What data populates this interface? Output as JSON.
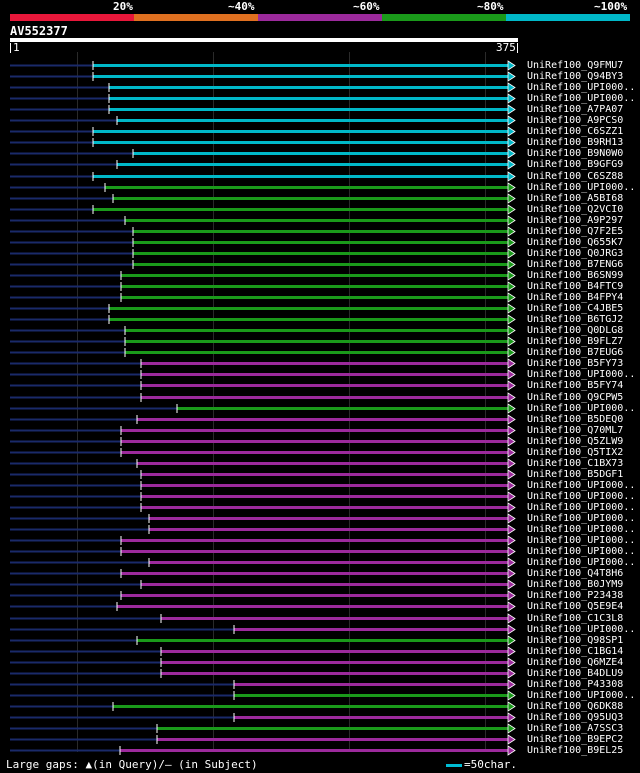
{
  "legend": {
    "labels": [
      "20%",
      "~40%",
      "~60%",
      "~80%",
      "~100%"
    ],
    "colors": [
      "#e8173a",
      "#e07020",
      "#9c2a9c",
      "#1a9a1a",
      "#00b8c8"
    ]
  },
  "query": {
    "name": "AV552377",
    "start": "1",
    "end": "375"
  },
  "hits": [
    {
      "label": "UniRef100_Q9FMU7",
      "color": "#00b8c8"
    },
    {
      "label": "UniRef100_Q94BY3",
      "color": "#00b8c8"
    },
    {
      "label": "UniRef100_UPI000..",
      "color": "#00b8c8"
    },
    {
      "label": "UniRef100_UPI000..",
      "color": "#00b8c8"
    },
    {
      "label": "UniRef100_A7PA07",
      "color": "#00b8c8"
    },
    {
      "label": "UniRef100_A9PCS0",
      "color": "#00b8c8"
    },
    {
      "label": "UniRef100_C6SZZ1",
      "color": "#00b8c8"
    },
    {
      "label": "UniRef100_B9RH13",
      "color": "#00b8c8"
    },
    {
      "label": "UniRef100_B9N0W0",
      "color": "#00b8c8"
    },
    {
      "label": "UniRef100_B9GFG9",
      "color": "#00b8c8"
    },
    {
      "label": "UniRef100_C6SZ88",
      "color": "#00b8c8"
    },
    {
      "label": "UniRef100_UPI000..",
      "color": "#1a9a1a"
    },
    {
      "label": "UniRef100_A5BI68",
      "color": "#1a9a1a"
    },
    {
      "label": "UniRef100_Q2VCI0",
      "color": "#1a9a1a"
    },
    {
      "label": "UniRef100_A9P297",
      "color": "#1a9a1a"
    },
    {
      "label": "UniRef100_Q7F2E5",
      "color": "#1a9a1a"
    },
    {
      "label": "UniRef100_Q655K7",
      "color": "#1a9a1a"
    },
    {
      "label": "UniRef100_Q0JRG3",
      "color": "#1a9a1a"
    },
    {
      "label": "UniRef100_B7ENG6",
      "color": "#1a9a1a"
    },
    {
      "label": "UniRef100_B6SN99",
      "color": "#1a9a1a"
    },
    {
      "label": "UniRef100_B4FTC9",
      "color": "#1a9a1a"
    },
    {
      "label": "UniRef100_B4FPY4",
      "color": "#1a9a1a"
    },
    {
      "label": "UniRef100_C4JBE5",
      "color": "#1a9a1a"
    },
    {
      "label": "UniRef100_B6TGJ2",
      "color": "#1a9a1a"
    },
    {
      "label": "UniRef100_Q0DLG8",
      "color": "#1a9a1a"
    },
    {
      "label": "UniRef100_B9FLZ7",
      "color": "#1a9a1a"
    },
    {
      "label": "UniRef100_B7EUG6",
      "color": "#1a9a1a"
    },
    {
      "label": "UniRef100_B5FY73",
      "color": "#9c2a9c"
    },
    {
      "label": "UniRef100_UPI000..",
      "color": "#9c2a9c"
    },
    {
      "label": "UniRef100_B5FY74",
      "color": "#9c2a9c"
    },
    {
      "label": "UniRef100_Q9CPW5",
      "color": "#9c2a9c"
    },
    {
      "label": "UniRef100_UPI000..",
      "color": "#1a9a1a"
    },
    {
      "label": "UniRef100_B5DEQ0",
      "color": "#9c2a9c"
    },
    {
      "label": "UniRef100_Q70ML7",
      "color": "#9c2a9c"
    },
    {
      "label": "UniRef100_Q5ZLW9",
      "color": "#9c2a9c"
    },
    {
      "label": "UniRef100_Q5TIX2",
      "color": "#9c2a9c"
    },
    {
      "label": "UniRef100_C1BX73",
      "color": "#9c2a9c"
    },
    {
      "label": "UniRef100_B5DGF1",
      "color": "#9c2a9c"
    },
    {
      "label": "UniRef100_UPI000..",
      "color": "#9c2a9c"
    },
    {
      "label": "UniRef100_UPI000..",
      "color": "#9c2a9c"
    },
    {
      "label": "UniRef100_UPI000..",
      "color": "#9c2a9c"
    },
    {
      "label": "UniRef100_UPI000..",
      "color": "#9c2a9c"
    },
    {
      "label": "UniRef100_UPI000..",
      "color": "#9c2a9c"
    },
    {
      "label": "UniRef100_UPI000..",
      "color": "#9c2a9c"
    },
    {
      "label": "UniRef100_UPI000..",
      "color": "#9c2a9c"
    },
    {
      "label": "UniRef100_UPI000..",
      "color": "#9c2a9c"
    },
    {
      "label": "UniRef100_Q4T8H6",
      "color": "#9c2a9c"
    },
    {
      "label": "UniRef100_B0JYM9",
      "color": "#9c2a9c"
    },
    {
      "label": "UniRef100_P23438",
      "color": "#9c2a9c"
    },
    {
      "label": "UniRef100_Q5E9E4",
      "color": "#9c2a9c"
    },
    {
      "label": "UniRef100_C1C3L8",
      "color": "#9c2a9c"
    },
    {
      "label": "UniRef100_UPI000..",
      "color": "#9c2a9c"
    },
    {
      "label": "UniRef100_Q98SP1",
      "color": "#1a9a1a"
    },
    {
      "label": "UniRef100_C1BG14",
      "color": "#9c2a9c"
    },
    {
      "label": "UniRef100_Q6MZE4",
      "color": "#9c2a9c"
    },
    {
      "label": "UniRef100_B4DLU9",
      "color": "#9c2a9c"
    },
    {
      "label": "UniRef100_P43308",
      "color": "#9c2a9c"
    },
    {
      "label": "UniRef100_UPI000..",
      "color": "#1a9a1a"
    },
    {
      "label": "UniRef100_Q6DK88",
      "color": "#1a9a1a"
    },
    {
      "label": "UniRef100_Q95UQ3",
      "color": "#9c2a9c"
    },
    {
      "label": "UniRef100_A7SSC3",
      "color": "#1a9a1a"
    },
    {
      "label": "UniRef100_B9EPC2",
      "color": "#9c2a9c"
    },
    {
      "label": "UniRef100_B9EL25",
      "color": "#9c2a9c"
    }
  ],
  "footer": {
    "gaps_text": "Large gaps: ▲(in Query)/– (in Subject)",
    "scale_text": "=50char."
  }
}
